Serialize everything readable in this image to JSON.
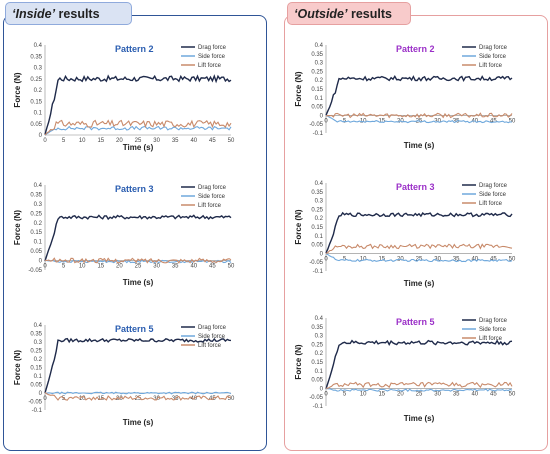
{
  "labels": {
    "inside": {
      "quote": "‘Inside’",
      "rest": " results"
    },
    "outside": {
      "quote": "‘Outside’",
      "rest": " results"
    }
  },
  "colors": {
    "drag": "#1f2a4a",
    "side": "#6fa8dc",
    "lift": "#c88a6a",
    "inside_title": "#2a5db0",
    "outside_title": "#9b30c8"
  },
  "chart_data": [
    {
      "type": "line",
      "title": "Pattern 2",
      "group": "inside",
      "xlabel": "Time (s)",
      "ylabel": "Force (N)",
      "xlim": [
        0,
        50
      ],
      "ylim": [
        0,
        0.4
      ],
      "yticks": [
        0,
        0.05,
        0.1,
        0.15,
        0.2,
        0.25,
        0.3,
        0.35,
        0.4
      ],
      "xticks": [
        0,
        5,
        10,
        15,
        20,
        25,
        30,
        35,
        40,
        45,
        50
      ],
      "series": [
        {
          "name": "Drag force",
          "steady": 0.25,
          "noise": 0.012
        },
        {
          "name": "Side force",
          "steady": 0.03,
          "noise": 0.008
        },
        {
          "name": "Lift force",
          "steady": 0.05,
          "noise": 0.015
        }
      ]
    },
    {
      "type": "line",
      "title": "Pattern 3",
      "group": "inside",
      "xlabel": "Time (s)",
      "ylabel": "Force (N)",
      "xlim": [
        0,
        50
      ],
      "ylim": [
        -0.05,
        0.4
      ],
      "yticks": [
        -0.05,
        0,
        0.05,
        0.1,
        0.15,
        0.2,
        0.25,
        0.3,
        0.35,
        0.4
      ],
      "xticks": [
        0,
        5,
        10,
        15,
        20,
        25,
        30,
        35,
        40,
        45,
        50
      ],
      "series": [
        {
          "name": "Drag force",
          "steady": 0.23,
          "noise": 0.01
        },
        {
          "name": "Side force",
          "steady": -0.005,
          "noise": 0.006
        },
        {
          "name": "Lift force",
          "steady": 0.0,
          "noise": 0.012
        }
      ]
    },
    {
      "type": "line",
      "title": "Pattern 5",
      "group": "inside",
      "xlabel": "Time (s)",
      "ylabel": "Force (N)",
      "xlim": [
        0,
        50
      ],
      "ylim": [
        -0.1,
        0.4
      ],
      "yticks": [
        -0.1,
        -0.05,
        0,
        0.05,
        0.1,
        0.15,
        0.2,
        0.25,
        0.3,
        0.35,
        0.4
      ],
      "xticks": [
        0,
        5,
        10,
        15,
        20,
        25,
        30,
        35,
        40,
        45,
        50
      ],
      "series": [
        {
          "name": "Drag force",
          "steady": 0.31,
          "noise": 0.01
        },
        {
          "name": "Side force",
          "steady": 0.0,
          "noise": 0.005
        },
        {
          "name": "Lift force",
          "steady": -0.03,
          "noise": 0.012
        }
      ]
    },
    {
      "type": "line",
      "title": "Pattern 2",
      "group": "outside",
      "xlabel": "Time (s)",
      "ylabel": "Force (N)",
      "xlim": [
        0,
        50
      ],
      "ylim": [
        -0.1,
        0.4
      ],
      "yticks": [
        -0.1,
        -0.05,
        0,
        0.05,
        0.1,
        0.15,
        0.2,
        0.25,
        0.3,
        0.35,
        0.4
      ],
      "xticks": [
        0,
        5,
        10,
        15,
        20,
        25,
        30,
        35,
        40,
        45,
        50
      ],
      "series": [
        {
          "name": "Drag force",
          "steady": 0.21,
          "noise": 0.012
        },
        {
          "name": "Side force",
          "steady": -0.035,
          "noise": 0.006
        },
        {
          "name": "Lift force",
          "steady": 0.0,
          "noise": 0.012
        }
      ]
    },
    {
      "type": "line",
      "title": "Pattern 3",
      "group": "outside",
      "xlabel": "Time (s)",
      "ylabel": "Force (N)",
      "xlim": [
        0,
        50
      ],
      "ylim": [
        -0.1,
        0.4
      ],
      "yticks": [
        -0.1,
        -0.05,
        0,
        0.05,
        0.1,
        0.15,
        0.2,
        0.25,
        0.3,
        0.35,
        0.4
      ],
      "xticks": [
        0,
        5,
        10,
        15,
        20,
        25,
        30,
        35,
        40,
        45,
        50
      ],
      "series": [
        {
          "name": "Drag force",
          "steady": 0.22,
          "noise": 0.01
        },
        {
          "name": "Side force",
          "steady": -0.04,
          "noise": 0.006
        },
        {
          "name": "Lift force",
          "steady": 0.04,
          "noise": 0.012
        }
      ]
    },
    {
      "type": "line",
      "title": "Pattern 5",
      "group": "outside",
      "xlabel": "Time (s)",
      "ylabel": "Force (N)",
      "xlim": [
        0,
        50
      ],
      "ylim": [
        -0.1,
        0.4
      ],
      "yticks": [
        -0.1,
        -0.05,
        0,
        0.05,
        0.1,
        0.15,
        0.2,
        0.25,
        0.3,
        0.35,
        0.4
      ],
      "xticks": [
        0,
        5,
        10,
        15,
        20,
        25,
        30,
        35,
        40,
        45,
        50
      ],
      "series": [
        {
          "name": "Drag force",
          "steady": 0.26,
          "noise": 0.012
        },
        {
          "name": "Side force",
          "steady": -0.01,
          "noise": 0.006
        },
        {
          "name": "Lift force",
          "steady": 0.02,
          "noise": 0.014
        }
      ]
    }
  ]
}
